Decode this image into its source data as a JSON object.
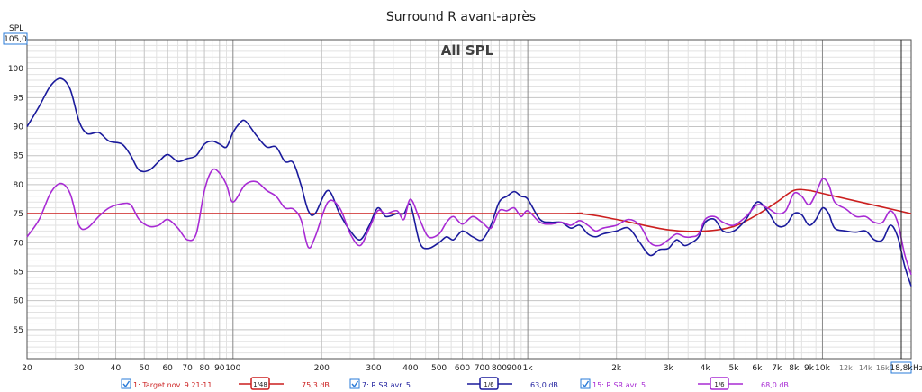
{
  "chart_data": {
    "type": "line",
    "title": "Surround R avant-après",
    "inner_title": "All SPL",
    "ylabel": "SPL",
    "xlabel": "Hz",
    "x_scale": "log",
    "xlim": [
      20,
      20000
    ],
    "ylim": [
      50,
      105
    ],
    "y_top_readout": "105,0",
    "x_end_readout": "18,8k",
    "y_ticks": [
      55,
      60,
      65,
      70,
      75,
      80,
      85,
      90,
      95,
      100
    ],
    "x_ticks": [
      {
        "v": 20,
        "label": "20"
      },
      {
        "v": 30,
        "label": "30"
      },
      {
        "v": 40,
        "label": "40"
      },
      {
        "v": 50,
        "label": "50"
      },
      {
        "v": 60,
        "label": "60"
      },
      {
        "v": 70,
        "label": "70"
      },
      {
        "v": 80,
        "label": "80"
      },
      {
        "v": 90,
        "label": "90"
      },
      {
        "v": 100,
        "label": "100"
      },
      {
        "v": 200,
        "label": "200"
      },
      {
        "v": 300,
        "label": "300"
      },
      {
        "v": 400,
        "label": "400"
      },
      {
        "v": 500,
        "label": "500"
      },
      {
        "v": 600,
        "label": "600"
      },
      {
        "v": 700,
        "label": "700"
      },
      {
        "v": 800,
        "label": "800"
      },
      {
        "v": 900,
        "label": "900"
      },
      {
        "v": 1000,
        "label": "1k"
      },
      {
        "v": 2000,
        "label": "2k"
      },
      {
        "v": 3000,
        "label": "3k"
      },
      {
        "v": 4000,
        "label": "4k"
      },
      {
        "v": 5000,
        "label": "5k"
      },
      {
        "v": 6000,
        "label": "6k"
      },
      {
        "v": 7000,
        "label": "7k"
      },
      {
        "v": 8000,
        "label": "8k"
      },
      {
        "v": 9000,
        "label": "9k"
      },
      {
        "v": 10000,
        "label": "10k"
      },
      {
        "v": 12000,
        "label": "12k",
        "minor": true
      },
      {
        "v": 14000,
        "label": "14k",
        "minor": true
      },
      {
        "v": 16000,
        "label": "16k",
        "minor": true
      }
    ],
    "series": [
      {
        "color": "#cc1f1f",
        "points": [
          [
            20,
            75
          ],
          [
            1000,
            75
          ],
          [
            1500,
            75
          ],
          [
            2000,
            74
          ],
          [
            3000,
            72.2
          ],
          [
            4000,
            72
          ],
          [
            5000,
            72.8
          ],
          [
            6000,
            74.8
          ],
          [
            7000,
            77
          ],
          [
            8000,
            79
          ],
          [
            9000,
            79
          ],
          [
            10000,
            78.5
          ],
          [
            20000,
            75
          ]
        ]
      },
      {
        "color": "#1a1a9c",
        "points": [
          [
            20,
            90
          ],
          [
            22,
            93.5
          ],
          [
            24,
            97
          ],
          [
            26,
            98.3
          ],
          [
            28,
            96.5
          ],
          [
            30,
            91
          ],
          [
            32,
            88.8
          ],
          [
            35,
            89
          ],
          [
            38,
            87.5
          ],
          [
            42,
            87
          ],
          [
            45,
            85
          ],
          [
            48,
            82.5
          ],
          [
            52,
            82.5
          ],
          [
            56,
            84
          ],
          [
            60,
            85.2
          ],
          [
            65,
            84
          ],
          [
            70,
            84.5
          ],
          [
            75,
            85
          ],
          [
            80,
            87
          ],
          [
            85,
            87.5
          ],
          [
            90,
            87
          ],
          [
            95,
            86.5
          ],
          [
            100,
            89
          ],
          [
            105,
            90.5
          ],
          [
            110,
            91
          ],
          [
            120,
            88.5
          ],
          [
            130,
            86.5
          ],
          [
            140,
            86.5
          ],
          [
            150,
            84
          ],
          [
            160,
            83.8
          ],
          [
            170,
            80
          ],
          [
            180,
            75.5
          ],
          [
            190,
            75
          ],
          [
            210,
            79
          ],
          [
            230,
            75
          ],
          [
            250,
            72
          ],
          [
            270,
            70.5
          ],
          [
            290,
            73
          ],
          [
            310,
            76
          ],
          [
            330,
            74.5
          ],
          [
            360,
            75
          ],
          [
            380,
            75
          ],
          [
            400,
            76.5
          ],
          [
            430,
            70
          ],
          [
            460,
            69
          ],
          [
            500,
            70
          ],
          [
            530,
            71
          ],
          [
            560,
            70.5
          ],
          [
            600,
            72
          ],
          [
            650,
            71
          ],
          [
            700,
            70.5
          ],
          [
            750,
            73
          ],
          [
            800,
            77
          ],
          [
            850,
            78
          ],
          [
            900,
            78.8
          ],
          [
            950,
            78
          ],
          [
            1000,
            77.5
          ],
          [
            1100,
            74
          ],
          [
            1200,
            73.5
          ],
          [
            1300,
            73.5
          ],
          [
            1400,
            72.5
          ],
          [
            1500,
            73
          ],
          [
            1600,
            71.5
          ],
          [
            1700,
            71
          ],
          [
            1800,
            71.5
          ],
          [
            2000,
            72
          ],
          [
            2200,
            72.5
          ],
          [
            2400,
            70
          ],
          [
            2600,
            67.8
          ],
          [
            2800,
            68.8
          ],
          [
            3000,
            69
          ],
          [
            3200,
            70.5
          ],
          [
            3400,
            69.5
          ],
          [
            3600,
            70
          ],
          [
            3800,
            71
          ],
          [
            4000,
            73.5
          ],
          [
            4300,
            74
          ],
          [
            4600,
            72
          ],
          [
            5000,
            72
          ],
          [
            5500,
            74
          ],
          [
            6000,
            77
          ],
          [
            6500,
            75.5
          ],
          [
            7000,
            73
          ],
          [
            7500,
            73
          ],
          [
            8000,
            75
          ],
          [
            8500,
            74.8
          ],
          [
            9000,
            73
          ],
          [
            9500,
            74
          ],
          [
            10000,
            76
          ],
          [
            10500,
            75
          ],
          [
            11000,
            72.5
          ],
          [
            12000,
            72
          ],
          [
            13000,
            71.8
          ],
          [
            14000,
            72
          ],
          [
            15000,
            70.5
          ],
          [
            16000,
            70.5
          ],
          [
            17000,
            73
          ],
          [
            18000,
            71
          ],
          [
            19000,
            66
          ],
          [
            20000,
            62.5
          ]
        ]
      },
      {
        "color": "#a82bd4",
        "points": [
          [
            20,
            71
          ],
          [
            22,
            74
          ],
          [
            24,
            78.5
          ],
          [
            26,
            80.2
          ],
          [
            28,
            78.5
          ],
          [
            30,
            73
          ],
          [
            32,
            72.5
          ],
          [
            35,
            74.5
          ],
          [
            38,
            76
          ],
          [
            42,
            76.7
          ],
          [
            45,
            76.5
          ],
          [
            48,
            74
          ],
          [
            52,
            72.8
          ],
          [
            56,
            73
          ],
          [
            60,
            74
          ],
          [
            65,
            72.5
          ],
          [
            70,
            70.5
          ],
          [
            75,
            71.5
          ],
          [
            80,
            79
          ],
          [
            85,
            82.5
          ],
          [
            90,
            82
          ],
          [
            95,
            80
          ],
          [
            100,
            77
          ],
          [
            110,
            80
          ],
          [
            120,
            80.5
          ],
          [
            130,
            79
          ],
          [
            140,
            78
          ],
          [
            150,
            76
          ],
          [
            160,
            75.8
          ],
          [
            170,
            74
          ],
          [
            180,
            69.2
          ],
          [
            190,
            71
          ],
          [
            210,
            77
          ],
          [
            230,
            76
          ],
          [
            250,
            71.5
          ],
          [
            270,
            69.5
          ],
          [
            290,
            72.5
          ],
          [
            310,
            75.5
          ],
          [
            330,
            75
          ],
          [
            360,
            75.5
          ],
          [
            380,
            74
          ],
          [
            400,
            77.5
          ],
          [
            430,
            74
          ],
          [
            460,
            71
          ],
          [
            500,
            71.5
          ],
          [
            530,
            73.5
          ],
          [
            560,
            74.5
          ],
          [
            600,
            73.2
          ],
          [
            650,
            74.5
          ],
          [
            700,
            73.5
          ],
          [
            750,
            72.5
          ],
          [
            800,
            75.5
          ],
          [
            850,
            75.5
          ],
          [
            900,
            76
          ],
          [
            950,
            74.5
          ],
          [
            1000,
            75.5
          ],
          [
            1100,
            73.5
          ],
          [
            1200,
            73.2
          ],
          [
            1300,
            73.5
          ],
          [
            1400,
            73
          ],
          [
            1500,
            73.8
          ],
          [
            1600,
            73
          ],
          [
            1700,
            72
          ],
          [
            1800,
            72.5
          ],
          [
            2000,
            73
          ],
          [
            2200,
            74
          ],
          [
            2400,
            73
          ],
          [
            2600,
            70
          ],
          [
            2800,
            69.5
          ],
          [
            3000,
            70.5
          ],
          [
            3200,
            71.5
          ],
          [
            3400,
            71
          ],
          [
            3600,
            71
          ],
          [
            3800,
            71.5
          ],
          [
            4000,
            74
          ],
          [
            4300,
            74.5
          ],
          [
            4600,
            73.5
          ],
          [
            5000,
            73
          ],
          [
            5500,
            74.5
          ],
          [
            6000,
            76.5
          ],
          [
            6500,
            76
          ],
          [
            7000,
            75
          ],
          [
            7500,
            75.5
          ],
          [
            8000,
            78.5
          ],
          [
            8500,
            78
          ],
          [
            9000,
            76.5
          ],
          [
            9500,
            78.5
          ],
          [
            10000,
            81
          ],
          [
            10500,
            80
          ],
          [
            11000,
            77
          ],
          [
            12000,
            75.8
          ],
          [
            13000,
            74.5
          ],
          [
            14000,
            74.5
          ],
          [
            15000,
            73.5
          ],
          [
            16000,
            73.5
          ],
          [
            17000,
            75.5
          ],
          [
            18000,
            73.5
          ],
          [
            19000,
            68
          ],
          [
            20000,
            64.5
          ]
        ]
      }
    ],
    "legend": [
      {
        "color": "#cc1f1f",
        "checked": true,
        "label": "1: Target nov. 9 21:11",
        "smoothing": "1/48",
        "value": "75,3 dB"
      },
      {
        "color": "#1a1a9c",
        "checked": true,
        "label": "7: R SR avr. 5",
        "smoothing": "1/6",
        "value": "63,0 dB"
      },
      {
        "color": "#a82bd4",
        "checked": true,
        "label": "15: R SR avr. 5",
        "smoothing": "1/6",
        "value": "68,0 dB"
      }
    ]
  }
}
